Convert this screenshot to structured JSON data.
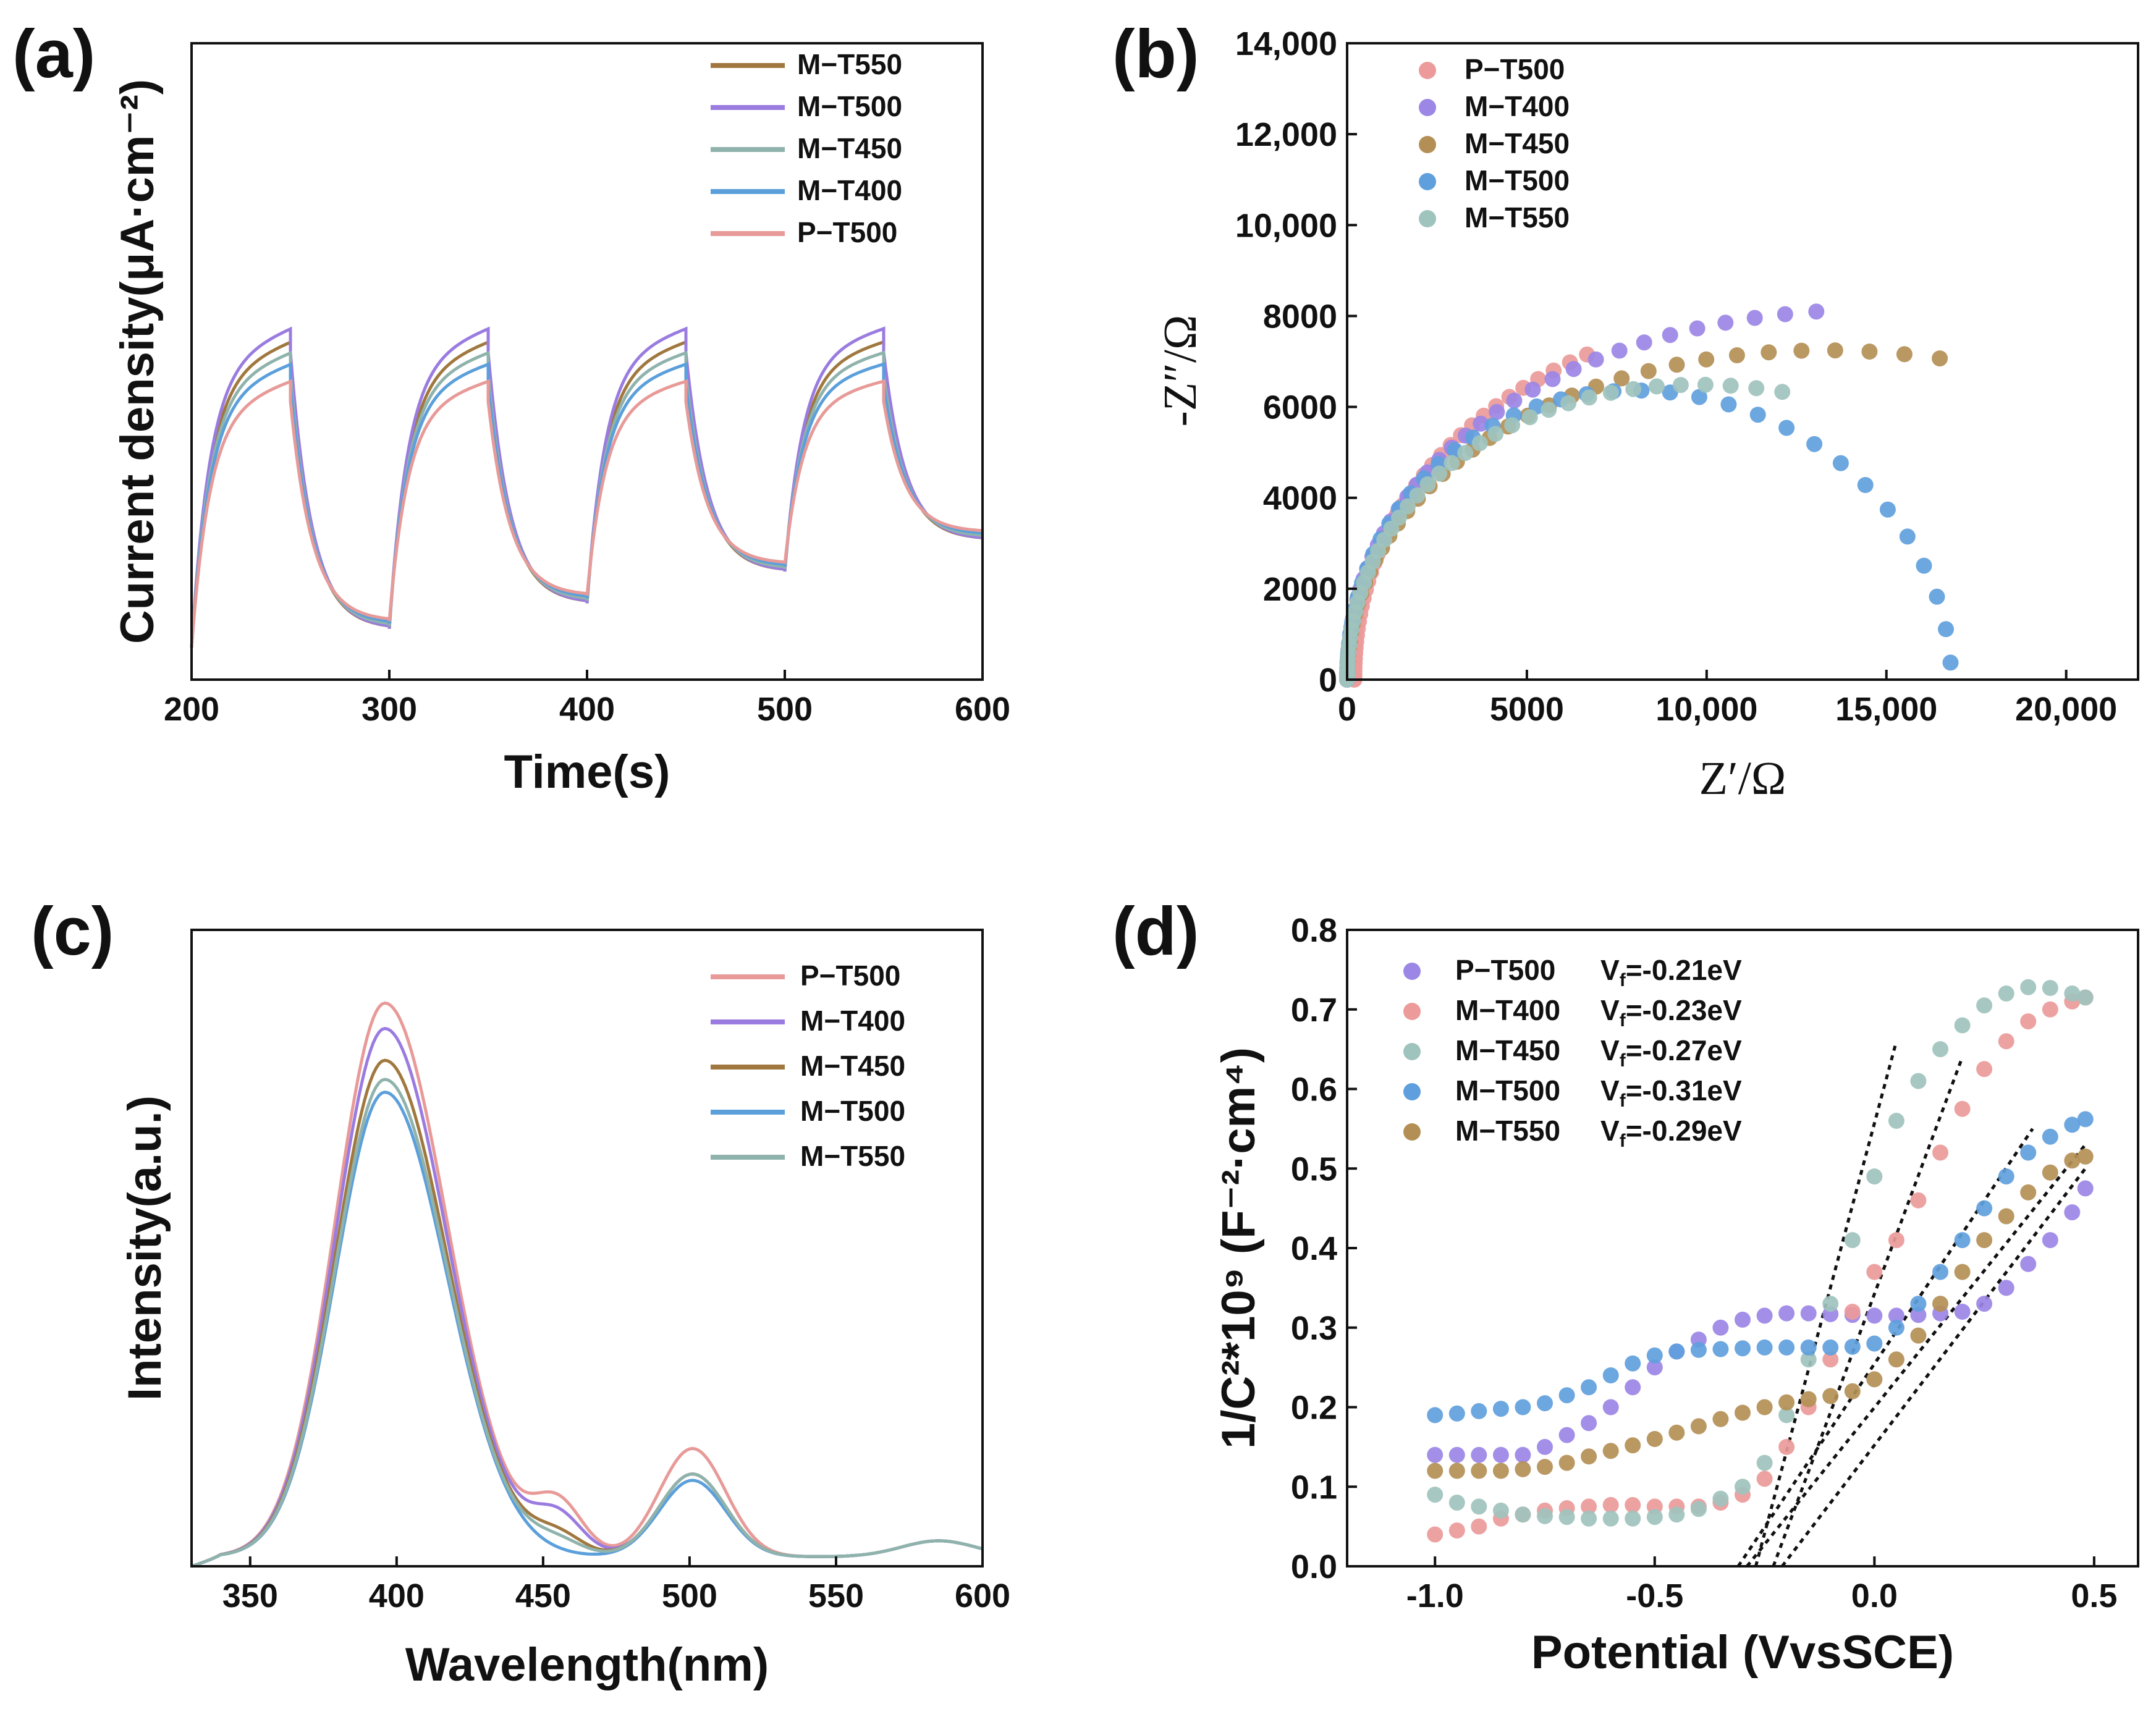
{
  "chart_data": [
    {
      "panel": "(a)",
      "type": "line",
      "xlabel": "Time(s)",
      "ylabel": "Current density(μA·cm⁻²)",
      "xlim": [
        200,
        600
      ],
      "xticks": [
        "200",
        "300",
        "400",
        "500",
        "600"
      ],
      "on_intervals": [
        [
          200,
          250
        ],
        [
          300,
          350
        ],
        [
          400,
          450
        ],
        [
          500,
          550
        ]
      ],
      "series": [
        {
          "name": "M−T550",
          "color": "#a0783f",
          "peak_level": 0.532,
          "level_offset": 0.0
        },
        {
          "name": "M−T500",
          "color": "#9a7be0",
          "peak_level": 0.553,
          "level_offset": 0.0
        },
        {
          "name": "M−T450",
          "color": "#8fb3ac",
          "peak_level": 0.515,
          "level_offset": 0.004
        },
        {
          "name": "M−T400",
          "color": "#5b9fdb",
          "peak_level": 0.497,
          "level_offset": 0.008
        },
        {
          "name": "P−T500",
          "color": "#e79a98",
          "peak_level": 0.47,
          "level_offset": 0.012
        }
      ],
      "dark_levels": [
        0.08,
        0.12,
        0.17,
        0.22
      ]
    },
    {
      "panel": "(b)",
      "type": "scatter",
      "xlabel": "Z′/Ω",
      "ylabel": "-Z″/Ω",
      "xlim": [
        0,
        22000
      ],
      "ylim": [
        0,
        14000
      ],
      "xticks": [
        {
          "value": 0,
          "label": "0"
        },
        {
          "value": 5000,
          "label": "5000"
        },
        {
          "value": 10000,
          "label": "10,000"
        },
        {
          "value": 15000,
          "label": "15,000"
        },
        {
          "value": 20000,
          "label": "20,000"
        }
      ],
      "yticks": [
        {
          "value": 0,
          "label": "0"
        },
        {
          "value": 2000,
          "label": "2000"
        },
        {
          "value": 4000,
          "label": "4000"
        },
        {
          "value": 6000,
          "label": "6000"
        },
        {
          "value": 8000,
          "label": "8000"
        },
        {
          "value": 10000,
          "label": "10,000"
        },
        {
          "value": 12000,
          "label": "12,000"
        },
        {
          "value": 14000,
          "label": "14,000"
        }
      ],
      "series": [
        {
          "name": "P−T500",
          "color": "#ec9a9a",
          "center": 16500,
          "radius": 16300,
          "vscale": 0.55,
          "t_end": 0.3
        },
        {
          "name": "M−T400",
          "color": "#9c86e6",
          "center": 16000,
          "radius": 16000,
          "vscale": 0.515,
          "t_end": 0.45
        },
        {
          "name": "M−T450",
          "color": "#b48f55",
          "center": 14300,
          "radius": 14300,
          "vscale": 0.5,
          "t_end": 0.56
        },
        {
          "name": "M−T500",
          "color": "#5f9fdd",
          "center": 8400,
          "radius": 8400,
          "vscale": 0.71,
          "t_end": 1.0
        },
        {
          "name": "M−T550",
          "color": "#9fc3bd",
          "center": 10500,
          "radius": 10500,
          "vscale": 0.61,
          "t_end": 0.56
        }
      ]
    },
    {
      "panel": "(c)",
      "type": "line",
      "xlabel": "Wavelength(nm)",
      "ylabel": "Intensity(a.u.)",
      "xlim": [
        330,
        600
      ],
      "xticks": [
        {
          "value": 350,
          "label": "350"
        },
        {
          "value": 400,
          "label": "400"
        },
        {
          "value": 450,
          "label": "450"
        },
        {
          "value": 500,
          "label": "500"
        },
        {
          "value": 550,
          "label": "550"
        },
        {
          "value": 600,
          "label": "600"
        }
      ],
      "series": [
        {
          "name": "P−T500",
          "color": "#e79a98",
          "peak": 0.87,
          "shoulder": 0.08,
          "second_peak": 0.17
        },
        {
          "name": "M−T400",
          "color": "#9a7be0",
          "peak": 0.83,
          "shoulder": 0.06,
          "second_peak": 0.13
        },
        {
          "name": "M−T450",
          "color": "#a0783f",
          "peak": 0.78,
          "shoulder": 0.03,
          "second_peak": 0.13
        },
        {
          "name": "M−T500",
          "color": "#5b9fdb",
          "peak": 0.73,
          "shoulder": 0.0,
          "second_peak": 0.12
        },
        {
          "name": "M−T550",
          "color": "#8fb3ac",
          "peak": 0.75,
          "shoulder": 0.02,
          "second_peak": 0.13
        }
      ]
    },
    {
      "panel": "(d)",
      "type": "scatter",
      "xlabel": "Potential (VvsSCE)",
      "ylabel": "1/C²*10⁹ (F⁻²·cm⁴)",
      "xlim": [
        -1.2,
        0.6
      ],
      "ylim": [
        0.0,
        0.8
      ],
      "xticks": [
        {
          "value": -1.0,
          "label": "-1.0"
        },
        {
          "value": -0.5,
          "label": "-0.5"
        },
        {
          "value": 0.0,
          "label": "0.0"
        },
        {
          "value": 0.5,
          "label": "0.5"
        }
      ],
      "yticks": [
        {
          "value": 0.0,
          "label": "0.0"
        },
        {
          "value": 0.1,
          "label": "0.1"
        },
        {
          "value": 0.2,
          "label": "0.2"
        },
        {
          "value": 0.3,
          "label": "0.3"
        },
        {
          "value": 0.4,
          "label": "0.4"
        },
        {
          "value": 0.5,
          "label": "0.5"
        },
        {
          "value": 0.6,
          "label": "0.6"
        },
        {
          "value": 0.7,
          "label": "0.7"
        },
        {
          "value": 0.8,
          "label": "0.8"
        }
      ],
      "series": [
        {
          "name": "P−T500",
          "vf": "-0.21eV",
          "color": "#9c86e6",
          "points": [
            [
              -1.0,
              0.14
            ],
            [
              -0.95,
              0.14
            ],
            [
              -0.9,
              0.14
            ],
            [
              -0.85,
              0.14
            ],
            [
              -0.8,
              0.14
            ],
            [
              -0.75,
              0.15
            ],
            [
              -0.7,
              0.165
            ],
            [
              -0.65,
              0.18
            ],
            [
              -0.6,
              0.2
            ],
            [
              -0.55,
              0.225
            ],
            [
              -0.5,
              0.25
            ],
            [
              -0.45,
              0.27
            ],
            [
              -0.4,
              0.285
            ],
            [
              -0.35,
              0.3
            ],
            [
              -0.3,
              0.31
            ],
            [
              -0.25,
              0.315
            ],
            [
              -0.2,
              0.318
            ],
            [
              -0.15,
              0.318
            ],
            [
              -0.1,
              0.317
            ],
            [
              -0.05,
              0.316
            ],
            [
              0.0,
              0.315
            ],
            [
              0.05,
              0.315
            ],
            [
              0.1,
              0.316
            ],
            [
              0.15,
              0.318
            ],
            [
              0.2,
              0.32
            ],
            [
              0.25,
              0.33
            ],
            [
              0.3,
              0.35
            ],
            [
              0.35,
              0.38
            ],
            [
              0.4,
              0.41
            ],
            [
              0.45,
              0.445
            ],
            [
              0.48,
              0.475
            ]
          ]
        },
        {
          "name": "M−T400",
          "vf": "-0.23eV",
          "color": "#ec9a9a",
          "points": [
            [
              -1.0,
              0.04
            ],
            [
              -0.95,
              0.045
            ],
            [
              -0.9,
              0.05
            ],
            [
              -0.85,
              0.06
            ],
            [
              -0.8,
              0.065
            ],
            [
              -0.75,
              0.07
            ],
            [
              -0.7,
              0.073
            ],
            [
              -0.65,
              0.075
            ],
            [
              -0.6,
              0.077
            ],
            [
              -0.55,
              0.077
            ],
            [
              -0.5,
              0.075
            ],
            [
              -0.45,
              0.075
            ],
            [
              -0.4,
              0.075
            ],
            [
              -0.35,
              0.08
            ],
            [
              -0.3,
              0.09
            ],
            [
              -0.25,
              0.11
            ],
            [
              -0.2,
              0.15
            ],
            [
              -0.15,
              0.2
            ],
            [
              -0.1,
              0.26
            ],
            [
              -0.05,
              0.32
            ],
            [
              0.0,
              0.37
            ],
            [
              0.05,
              0.41
            ],
            [
              0.1,
              0.46
            ],
            [
              0.15,
              0.52
            ],
            [
              0.2,
              0.575
            ],
            [
              0.25,
              0.625
            ],
            [
              0.3,
              0.66
            ],
            [
              0.35,
              0.685
            ],
            [
              0.4,
              0.7
            ],
            [
              0.45,
              0.71
            ],
            [
              0.48,
              0.715
            ]
          ]
        },
        {
          "name": "M−T450",
          "vf": "-0.27eV",
          "color": "#9fc3bd",
          "points": [
            [
              -1.0,
              0.09
            ],
            [
              -0.95,
              0.08
            ],
            [
              -0.9,
              0.075
            ],
            [
              -0.85,
              0.07
            ],
            [
              -0.8,
              0.065
            ],
            [
              -0.75,
              0.063
            ],
            [
              -0.7,
              0.062
            ],
            [
              -0.65,
              0.06
            ],
            [
              -0.6,
              0.06
            ],
            [
              -0.55,
              0.06
            ],
            [
              -0.5,
              0.062
            ],
            [
              -0.45,
              0.065
            ],
            [
              -0.4,
              0.072
            ],
            [
              -0.35,
              0.085
            ],
            [
              -0.3,
              0.1
            ],
            [
              -0.25,
              0.13
            ],
            [
              -0.2,
              0.19
            ],
            [
              -0.15,
              0.26
            ],
            [
              -0.1,
              0.33
            ],
            [
              -0.05,
              0.41
            ],
            [
              0.0,
              0.49
            ],
            [
              0.05,
              0.56
            ],
            [
              0.1,
              0.61
            ],
            [
              0.15,
              0.65
            ],
            [
              0.2,
              0.68
            ],
            [
              0.25,
              0.705
            ],
            [
              0.3,
              0.72
            ],
            [
              0.35,
              0.728
            ],
            [
              0.4,
              0.727
            ],
            [
              0.45,
              0.72
            ],
            [
              0.48,
              0.715
            ]
          ]
        },
        {
          "name": "M−T500",
          "vf": "-0.31eV",
          "color": "#5f9fdd",
          "points": [
            [
              -1.0,
              0.19
            ],
            [
              -0.95,
              0.192
            ],
            [
              -0.9,
              0.195
            ],
            [
              -0.85,
              0.198
            ],
            [
              -0.8,
              0.2
            ],
            [
              -0.75,
              0.205
            ],
            [
              -0.7,
              0.215
            ],
            [
              -0.65,
              0.225
            ],
            [
              -0.6,
              0.24
            ],
            [
              -0.55,
              0.255
            ],
            [
              -0.5,
              0.265
            ],
            [
              -0.45,
              0.27
            ],
            [
              -0.4,
              0.272
            ],
            [
              -0.35,
              0.273
            ],
            [
              -0.3,
              0.274
            ],
            [
              -0.25,
              0.275
            ],
            [
              -0.2,
              0.275
            ],
            [
              -0.15,
              0.275
            ],
            [
              -0.1,
              0.275
            ],
            [
              -0.05,
              0.276
            ],
            [
              0.0,
              0.28
            ],
            [
              0.05,
              0.3
            ],
            [
              0.1,
              0.33
            ],
            [
              0.15,
              0.37
            ],
            [
              0.2,
              0.41
            ],
            [
              0.25,
              0.45
            ],
            [
              0.3,
              0.49
            ],
            [
              0.35,
              0.52
            ],
            [
              0.4,
              0.54
            ],
            [
              0.45,
              0.555
            ],
            [
              0.48,
              0.562
            ]
          ]
        },
        {
          "name": "M−T550",
          "vf": "-0.29eV",
          "color": "#b48f55",
          "points": [
            [
              -1.0,
              0.12
            ],
            [
              -0.95,
              0.12
            ],
            [
              -0.9,
              0.12
            ],
            [
              -0.85,
              0.12
            ],
            [
              -0.8,
              0.122
            ],
            [
              -0.75,
              0.125
            ],
            [
              -0.7,
              0.13
            ],
            [
              -0.65,
              0.138
            ],
            [
              -0.6,
              0.145
            ],
            [
              -0.55,
              0.152
            ],
            [
              -0.5,
              0.16
            ],
            [
              -0.45,
              0.168
            ],
            [
              -0.4,
              0.176
            ],
            [
              -0.35,
              0.185
            ],
            [
              -0.3,
              0.193
            ],
            [
              -0.25,
              0.2
            ],
            [
              -0.2,
              0.206
            ],
            [
              -0.15,
              0.21
            ],
            [
              -0.1,
              0.214
            ],
            [
              -0.05,
              0.22
            ],
            [
              0.0,
              0.235
            ],
            [
              0.05,
              0.26
            ],
            [
              0.1,
              0.29
            ],
            [
              0.15,
              0.33
            ],
            [
              0.2,
              0.37
            ],
            [
              0.25,
              0.41
            ],
            [
              0.3,
              0.44
            ],
            [
              0.35,
              0.47
            ],
            [
              0.4,
              0.495
            ],
            [
              0.45,
              0.51
            ],
            [
              0.48,
              0.515
            ]
          ]
        }
      ],
      "fit_lines": [
        {
          "series": "P−T500",
          "from": [
            -0.21,
            0.0
          ],
          "to": [
            0.48,
            0.5
          ]
        },
        {
          "series": "M−T400",
          "from": [
            -0.23,
            0.0
          ],
          "to": [
            0.2,
            0.64
          ]
        },
        {
          "series": "M−T450",
          "from": [
            -0.27,
            0.0
          ],
          "to": [
            0.05,
            0.66
          ]
        },
        {
          "series": "M−T500",
          "from": [
            -0.31,
            0.0
          ],
          "to": [
            0.36,
            0.55
          ]
        },
        {
          "series": "M−T550",
          "from": [
            -0.29,
            0.0
          ],
          "to": [
            0.48,
            0.53
          ]
        }
      ]
    }
  ]
}
